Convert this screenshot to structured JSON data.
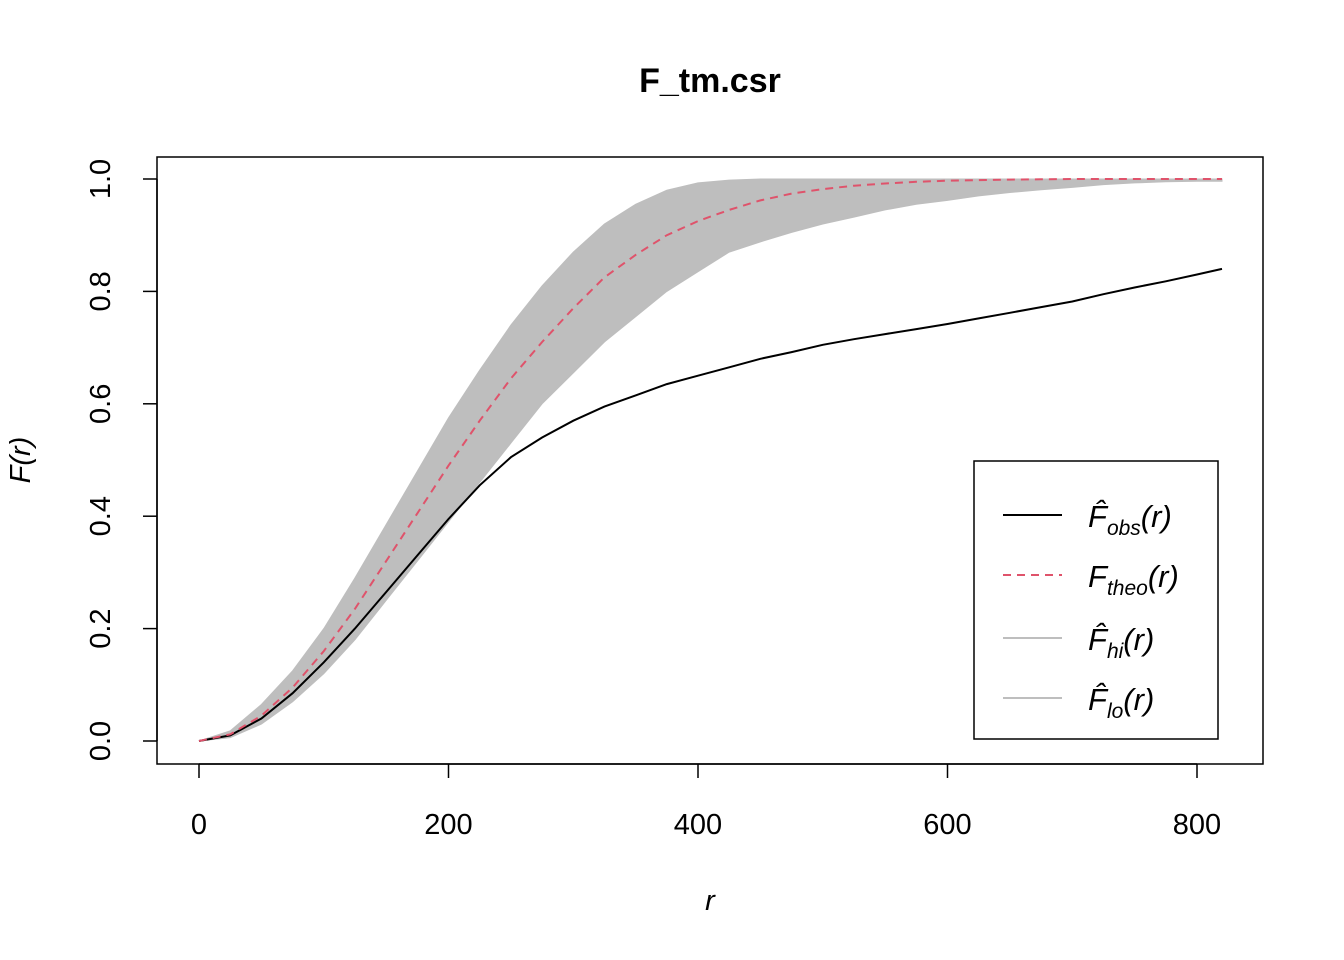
{
  "chart_data": {
    "type": "line",
    "title": "F_tm.csr",
    "xlabel": "r",
    "ylabel": "F(r)",
    "xlim": [
      0,
      820
    ],
    "ylim": [
      0,
      1
    ],
    "x_ticks": [
      0,
      200,
      400,
      600,
      800
    ],
    "y_ticks": [
      0.0,
      0.2,
      0.4,
      0.6,
      0.8,
      1.0
    ],
    "x_tick_labels": [
      "0",
      "200",
      "400",
      "600",
      "800"
    ],
    "y_tick_labels": [
      "0.0",
      "0.2",
      "0.4",
      "0.6",
      "0.8",
      "1.0"
    ],
    "grid": false,
    "legend_position": "bottom-right",
    "x": [
      0,
      25,
      50,
      75,
      100,
      125,
      150,
      175,
      200,
      225,
      250,
      275,
      300,
      325,
      350,
      375,
      400,
      425,
      450,
      475,
      500,
      525,
      550,
      575,
      600,
      625,
      650,
      675,
      700,
      725,
      750,
      775,
      800,
      820
    ],
    "series": [
      {
        "key": "obs",
        "symbol": "F̂",
        "subscript": "obs",
        "color": "#000000",
        "dash": "solid",
        "values": [
          0.0,
          0.01,
          0.04,
          0.085,
          0.14,
          0.2,
          0.265,
          0.33,
          0.395,
          0.455,
          0.505,
          0.54,
          0.57,
          0.595,
          0.615,
          0.635,
          0.65,
          0.665,
          0.68,
          0.692,
          0.705,
          0.715,
          0.724,
          0.733,
          0.742,
          0.752,
          0.762,
          0.772,
          0.782,
          0.795,
          0.807,
          0.818,
          0.83,
          0.84
        ]
      },
      {
        "key": "theo",
        "symbol": "F",
        "subscript": "theo",
        "color": "#df536b",
        "dash": "dashed",
        "values": [
          0.0,
          0.012,
          0.045,
          0.095,
          0.16,
          0.235,
          0.32,
          0.405,
          0.49,
          0.57,
          0.645,
          0.71,
          0.77,
          0.825,
          0.865,
          0.9,
          0.925,
          0.945,
          0.962,
          0.974,
          0.982,
          0.988,
          0.992,
          0.995,
          0.997,
          0.998,
          0.999,
          0.9995,
          1.0,
          1.0,
          1.0,
          1.0,
          1.0,
          1.0
        ]
      },
      {
        "key": "hi",
        "symbol": "F̂",
        "subscript": "hi",
        "color": "#bebebe",
        "dash": "solid",
        "values": [
          0.0,
          0.018,
          0.065,
          0.125,
          0.2,
          0.29,
          0.385,
          0.48,
          0.575,
          0.66,
          0.74,
          0.81,
          0.87,
          0.92,
          0.955,
          0.98,
          0.993,
          0.998,
          1.0,
          1.0,
          1.0,
          1.0,
          1.0,
          1.0,
          1.0,
          1.0,
          1.0,
          1.0,
          1.0,
          1.0,
          1.0,
          1.0,
          1.0,
          1.0
        ]
      },
      {
        "key": "lo",
        "symbol": "F̂",
        "subscript": "lo",
        "color": "#bebebe",
        "dash": "solid",
        "values": [
          0.0,
          0.006,
          0.03,
          0.07,
          0.12,
          0.18,
          0.25,
          0.32,
          0.39,
          0.46,
          0.53,
          0.6,
          0.655,
          0.71,
          0.755,
          0.8,
          0.835,
          0.87,
          0.888,
          0.905,
          0.92,
          0.932,
          0.945,
          0.955,
          0.962,
          0.97,
          0.976,
          0.981,
          0.985,
          0.99,
          0.993,
          0.995,
          0.996,
          0.996
        ]
      }
    ],
    "envelope": {
      "upper": "hi",
      "lower": "lo",
      "fill": "#bebebe"
    }
  }
}
